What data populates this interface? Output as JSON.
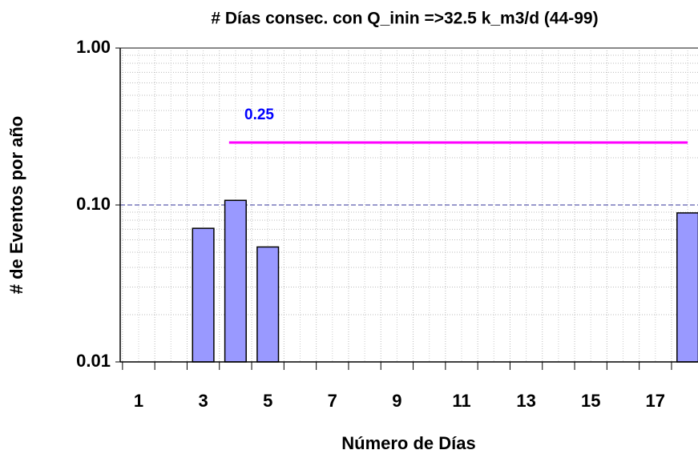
{
  "chart_data": {
    "type": "bar",
    "title": "# Días consec. con Q_inin =>32.5 k_m3/d  (44-99)",
    "x_label": "Número de Días",
    "y_label": "# de Eventos por año",
    "categories": [
      "1",
      null,
      "3",
      null,
      "5",
      null,
      "7",
      null,
      "9",
      null,
      "11",
      null,
      "13",
      null,
      "15",
      null,
      "17",
      null
    ],
    "values": [
      null,
      null,
      0.071,
      0.107,
      0.054,
      null,
      null,
      null,
      null,
      null,
      null,
      null,
      null,
      null,
      null,
      null,
      null,
      0.089
    ],
    "color": "#9999ff",
    "log_y": true,
    "ylim": [
      0.01,
      1
    ],
    "yticks": [
      {
        "value": 0.01,
        "label": "0.01"
      },
      {
        "value": 0.1,
        "label": "0.10"
      },
      {
        "value": 1,
        "label": "1.00"
      }
    ],
    "grid": true,
    "reference_line": {
      "value": 0.25,
      "color": "#ff00ff",
      "from": 3.8,
      "to": 18,
      "label_color": "#0000ff"
    }
  }
}
